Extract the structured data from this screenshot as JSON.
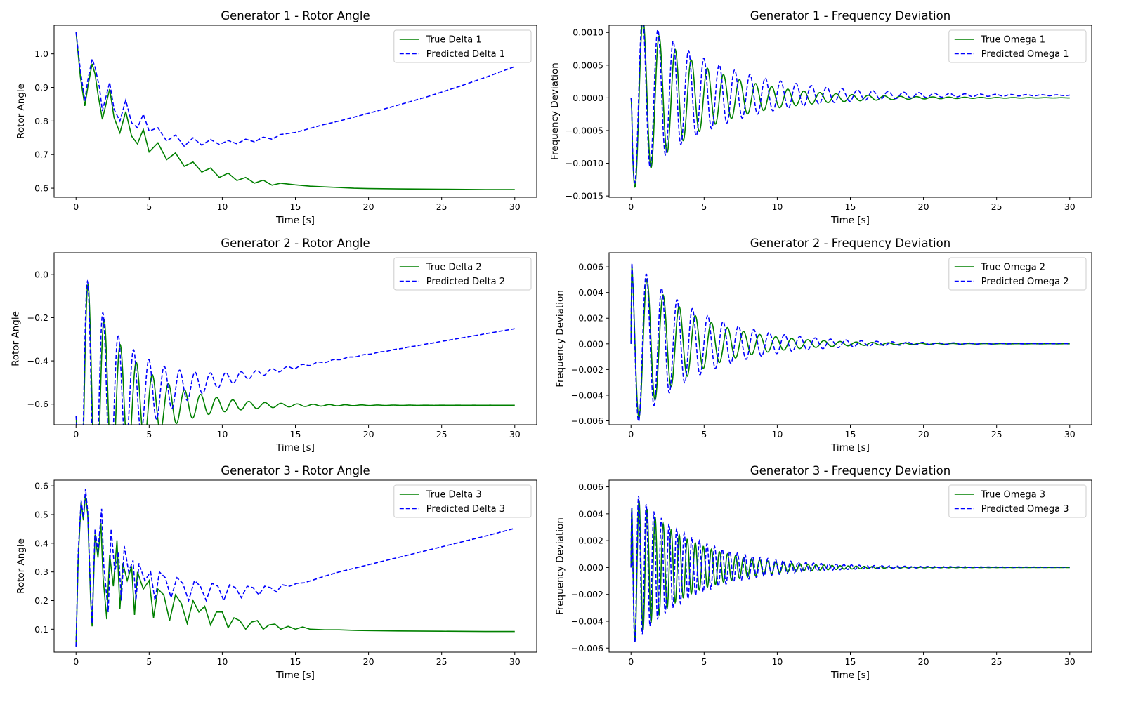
{
  "figure": {
    "background": "#ffffff",
    "colors": {
      "true_series": "#008000",
      "predicted_series": "#0000ff"
    }
  },
  "chart_data": [
    {
      "type": "line",
      "title": "Generator 1 - Rotor Angle",
      "xlabel": "Time [s]",
      "ylabel": "Rotor Angle",
      "xlim": [
        -1.5,
        31.5
      ],
      "ylim": [
        0.573,
        1.085
      ],
      "xticks": [
        0,
        5,
        10,
        15,
        20,
        25,
        30
      ],
      "xtick_labels": [
        "0",
        "5",
        "10",
        "15",
        "20",
        "25",
        "30"
      ],
      "yticks": [
        0.6,
        0.7,
        0.8,
        0.9,
        1.0
      ],
      "ytick_labels": [
        "0.6",
        "0.7",
        "0.8",
        "0.9",
        "1.0"
      ],
      "grid": false,
      "legend": "top-right",
      "series": [
        {
          "name": "True Delta 1",
          "style": "solid",
          "color": "#008000",
          "x": [
            0,
            0.3,
            0.6,
            0.8,
            1.1,
            1.3,
            1.5,
            1.8,
            2.3,
            2.6,
            3.0,
            3.4,
            3.8,
            4.2,
            4.6,
            5.0,
            5.6,
            6.2,
            6.8,
            7.4,
            8.0,
            8.6,
            9.2,
            9.8,
            10.4,
            11.0,
            11.6,
            12.2,
            12.8,
            13.4,
            14.0,
            15.0,
            16.0,
            17.0,
            18.0,
            19.0,
            20.0,
            22.0,
            25.0,
            28.0,
            30.0
          ],
          "y": [
            1.065,
            0.93,
            0.845,
            0.9,
            0.97,
            0.94,
            0.88,
            0.805,
            0.895,
            0.81,
            0.765,
            0.828,
            0.755,
            0.732,
            0.775,
            0.708,
            0.735,
            0.685,
            0.705,
            0.665,
            0.678,
            0.648,
            0.66,
            0.632,
            0.645,
            0.623,
            0.632,
            0.615,
            0.624,
            0.609,
            0.615,
            0.61,
            0.606,
            0.604,
            0.602,
            0.6,
            0.599,
            0.598,
            0.597,
            0.596,
            0.596
          ]
        },
        {
          "name": "Predicted Delta 1",
          "style": "dashed",
          "color": "#0000ff",
          "x": [
            0,
            0.3,
            0.6,
            0.8,
            1.1,
            1.3,
            1.6,
            1.8,
            2.3,
            2.6,
            3.0,
            3.4,
            3.8,
            4.2,
            4.6,
            5.0,
            5.6,
            6.2,
            6.8,
            7.4,
            8.0,
            8.6,
            9.2,
            9.8,
            10.4,
            11.0,
            11.6,
            12.2,
            12.8,
            13.4,
            14.0,
            15.0,
            16.0,
            17.0,
            18.0,
            20.0,
            22.0,
            24.0,
            26.0,
            28.0,
            30.0
          ],
          "y": [
            1.065,
            0.95,
            0.86,
            0.92,
            0.985,
            0.96,
            0.9,
            0.83,
            0.915,
            0.835,
            0.8,
            0.862,
            0.795,
            0.78,
            0.82,
            0.77,
            0.78,
            0.74,
            0.758,
            0.725,
            0.75,
            0.728,
            0.745,
            0.73,
            0.742,
            0.732,
            0.746,
            0.738,
            0.752,
            0.746,
            0.76,
            0.766,
            0.778,
            0.79,
            0.8,
            0.823,
            0.847,
            0.872,
            0.9,
            0.93,
            0.962
          ]
        }
      ]
    },
    {
      "type": "line",
      "title": "Generator 1 - Frequency Deviation",
      "xlabel": "Time [s]",
      "ylabel": "Frequency Deviation",
      "xlim": [
        -1.5,
        31.5
      ],
      "ylim": [
        -0.00152,
        0.00111
      ],
      "xticks": [
        0,
        5,
        10,
        15,
        20,
        25,
        30
      ],
      "xtick_labels": [
        "0",
        "5",
        "10",
        "15",
        "20",
        "25",
        "30"
      ],
      "yticks": [
        -0.0015,
        -0.001,
        -0.0005,
        0.0,
        0.0005,
        0.001
      ],
      "ytick_labels": [
        "−0.0015",
        "−0.0010",
        "−0.0005",
        "0.0000",
        "0.0005",
        "0.0010"
      ],
      "grid": false,
      "legend": "top-right",
      "series": [
        {
          "name": "True Omega 1",
          "style": "solid",
          "color": "#008000",
          "damped": {
            "a0": 0.00145,
            "period": 1.1,
            "tau": 4.5,
            "phase": 3.1416,
            "start": 0.0,
            "offset": 0.0,
            "drift": 0.0,
            "t0": 0.1
          }
        },
        {
          "name": "Predicted Omega 1",
          "style": "dashed",
          "color": "#0000ff",
          "damped": {
            "a0": 0.0014,
            "period": 1.05,
            "tau": 5.5,
            "phase": 3.1416,
            "start": 0.0,
            "offset": 4e-05,
            "drift": 0.0,
            "t0": 0.1
          }
        }
      ]
    },
    {
      "type": "line",
      "title": "Generator 2 - Rotor Angle",
      "xlabel": "Time [s]",
      "ylabel": "Rotor Angle",
      "xlim": [
        -1.5,
        31.5
      ],
      "ylim": [
        -0.695,
        0.1
      ],
      "xticks": [
        0,
        5,
        10,
        15,
        20,
        25,
        30
      ],
      "xtick_labels": [
        "0",
        "5",
        "10",
        "15",
        "20",
        "25",
        "30"
      ],
      "yticks": [
        -0.6,
        -0.4,
        -0.2,
        0.0
      ],
      "ytick_labels": [
        "−0.6",
        "−0.4",
        "−0.2",
        "0.0"
      ],
      "grid": false,
      "legend": "top-right",
      "series": [
        {
          "name": "True Delta 2",
          "style": "solid",
          "color": "#008000",
          "damped": {
            "a0": 0.72,
            "period": 1.1,
            "tau": 3.2,
            "phase": 3.1416,
            "start": -0.655,
            "offset": -0.605,
            "drift": 0.0,
            "t0": 0.05
          }
        },
        {
          "name": "Predicted Delta 2",
          "style": "dashed",
          "color": "#0000ff",
          "damped": {
            "a0": 0.72,
            "period": 1.05,
            "tau": 3.2,
            "phase": 3.1416,
            "start": -0.655,
            "offset": -0.605,
            "drift": 0.0118,
            "t0": 0.05
          }
        }
      ]
    },
    {
      "type": "line",
      "title": "Generator 2 - Frequency Deviation",
      "xlabel": "Time [s]",
      "ylabel": "Frequency Deviation",
      "xlim": [
        -1.5,
        31.5
      ],
      "ylim": [
        -0.0063,
        0.0071
      ],
      "xticks": [
        0,
        5,
        10,
        15,
        20,
        25,
        30
      ],
      "xtick_labels": [
        "0",
        "5",
        "10",
        "15",
        "20",
        "25",
        "30"
      ],
      "yticks": [
        -0.006,
        -0.004,
        -0.002,
        0.0,
        0.002,
        0.004,
        0.006
      ],
      "ytick_labels": [
        "−0.006",
        "−0.004",
        "−0.002",
        "0.000",
        "0.002",
        "0.004",
        "0.006"
      ],
      "grid": false,
      "legend": "top-right",
      "series": [
        {
          "name": "True Omega 2",
          "style": "solid",
          "color": "#008000",
          "damped": {
            "a0": 0.0066,
            "period": 1.1,
            "tau": 4.0,
            "phase": 1.5708,
            "start": 0.0,
            "offset": 0.0,
            "drift": 0.0,
            "t0": 0.05
          }
        },
        {
          "name": "Predicted Omega 2",
          "style": "dashed",
          "color": "#0000ff",
          "damped": {
            "a0": 0.0068,
            "period": 1.05,
            "tau": 4.6,
            "phase": 1.5708,
            "start": 0.0,
            "offset": 2e-05,
            "drift": 0.0,
            "t0": 0.05
          }
        }
      ]
    },
    {
      "type": "line",
      "title": "Generator 3 - Rotor Angle",
      "xlabel": "Time [s]",
      "ylabel": "Rotor Angle",
      "xlim": [
        -1.5,
        31.5
      ],
      "ylim": [
        0.02,
        0.62
      ],
      "xticks": [
        0,
        5,
        10,
        15,
        20,
        25,
        30
      ],
      "xtick_labels": [
        "0",
        "5",
        "10",
        "15",
        "20",
        "25",
        "30"
      ],
      "yticks": [
        0.1,
        0.2,
        0.3,
        0.4,
        0.5,
        0.6
      ],
      "ytick_labels": [
        "0.1",
        "0.2",
        "0.3",
        "0.4",
        "0.5",
        "0.6"
      ],
      "grid": false,
      "legend": "top-right",
      "series": [
        {
          "name": "True Delta 3",
          "style": "solid",
          "color": "#008000",
          "x": [
            0,
            0.15,
            0.35,
            0.5,
            0.65,
            0.8,
            1.0,
            1.1,
            1.3,
            1.5,
            1.7,
            1.85,
            2.1,
            2.3,
            2.55,
            2.8,
            3.0,
            3.2,
            3.5,
            3.8,
            4.0,
            4.2,
            4.6,
            5.0,
            5.3,
            5.6,
            6.0,
            6.4,
            6.8,
            7.2,
            7.6,
            8.0,
            8.4,
            8.8,
            9.2,
            9.6,
            10.0,
            10.4,
            10.8,
            11.2,
            11.6,
            12.0,
            12.4,
            12.8,
            13.2,
            13.6,
            14.0,
            14.5,
            15.0,
            15.5,
            16.0,
            17.0,
            18.0,
            19.0,
            20.0,
            22.0,
            25.0,
            28.0,
            30.0
          ],
          "y": [
            0.04,
            0.35,
            0.545,
            0.48,
            0.57,
            0.5,
            0.2,
            0.11,
            0.43,
            0.35,
            0.47,
            0.28,
            0.135,
            0.36,
            0.25,
            0.41,
            0.17,
            0.33,
            0.27,
            0.32,
            0.15,
            0.3,
            0.24,
            0.27,
            0.14,
            0.24,
            0.22,
            0.13,
            0.22,
            0.19,
            0.12,
            0.2,
            0.16,
            0.18,
            0.115,
            0.16,
            0.16,
            0.105,
            0.14,
            0.13,
            0.1,
            0.125,
            0.13,
            0.1,
            0.115,
            0.118,
            0.1,
            0.11,
            0.1,
            0.108,
            0.1,
            0.098,
            0.098,
            0.096,
            0.095,
            0.094,
            0.093,
            0.092,
            0.092
          ]
        },
        {
          "name": "Predicted Delta 3",
          "style": "dashed",
          "color": "#0000ff",
          "x": [
            0,
            0.15,
            0.35,
            0.5,
            0.65,
            0.8,
            1.0,
            1.1,
            1.3,
            1.5,
            1.75,
            1.9,
            2.2,
            2.4,
            2.65,
            2.9,
            3.1,
            3.3,
            3.6,
            3.9,
            4.1,
            4.3,
            4.7,
            5.1,
            5.4,
            5.7,
            6.1,
            6.5,
            6.9,
            7.3,
            7.7,
            8.1,
            8.5,
            8.9,
            9.3,
            9.7,
            10.1,
            10.5,
            10.9,
            11.3,
            11.7,
            12.1,
            12.5,
            12.9,
            13.3,
            13.7,
            14.1,
            14.6,
            15.1,
            15.6,
            16.1,
            17.0,
            18.0,
            20.0,
            22.0,
            24.0,
            26.0,
            28.0,
            30.0
          ],
          "y": [
            0.04,
            0.37,
            0.55,
            0.49,
            0.59,
            0.51,
            0.22,
            0.12,
            0.45,
            0.37,
            0.52,
            0.32,
            0.16,
            0.45,
            0.3,
            0.37,
            0.2,
            0.39,
            0.3,
            0.34,
            0.2,
            0.33,
            0.27,
            0.3,
            0.2,
            0.3,
            0.28,
            0.21,
            0.28,
            0.26,
            0.2,
            0.27,
            0.25,
            0.2,
            0.26,
            0.25,
            0.2,
            0.255,
            0.245,
            0.21,
            0.25,
            0.245,
            0.22,
            0.25,
            0.245,
            0.23,
            0.255,
            0.25,
            0.26,
            0.262,
            0.27,
            0.285,
            0.3,
            0.325,
            0.35,
            0.375,
            0.4,
            0.425,
            0.452
          ]
        }
      ]
    },
    {
      "type": "line",
      "title": "Generator 3 - Frequency Deviation",
      "xlabel": "Time [s]",
      "ylabel": "Frequency Deviation",
      "xlim": [
        -1.5,
        31.5
      ],
      "ylim": [
        -0.0063,
        0.0065
      ],
      "xticks": [
        0,
        5,
        10,
        15,
        20,
        25,
        30
      ],
      "xtick_labels": [
        "0",
        "5",
        "10",
        "15",
        "20",
        "25",
        "30"
      ],
      "yticks": [
        -0.006,
        -0.004,
        -0.002,
        0.0,
        0.002,
        0.004,
        0.006
      ],
      "ytick_labels": [
        "−0.006",
        "−0.004",
        "−0.002",
        "0.000",
        "0.002",
        "0.004",
        "0.006"
      ],
      "grid": false,
      "legend": "top-right",
      "series": [
        {
          "name": "True Omega 3",
          "style": "solid",
          "color": "#008000",
          "damped": {
            "a0": 0.0058,
            "period": 0.55,
            "tau": 3.8,
            "phase": 1.5708,
            "start": 0.0,
            "offset": 0.0,
            "drift": 0.0,
            "t0": 0.05
          }
        },
        {
          "name": "Predicted Omega 3",
          "style": "dashed",
          "color": "#0000ff",
          "damped": {
            "a0": 0.006,
            "period": 0.52,
            "tau": 4.2,
            "phase": 1.5708,
            "start": 0.0,
            "offset": 3e-05,
            "drift": 0.0,
            "t0": 0.05
          }
        }
      ]
    }
  ]
}
